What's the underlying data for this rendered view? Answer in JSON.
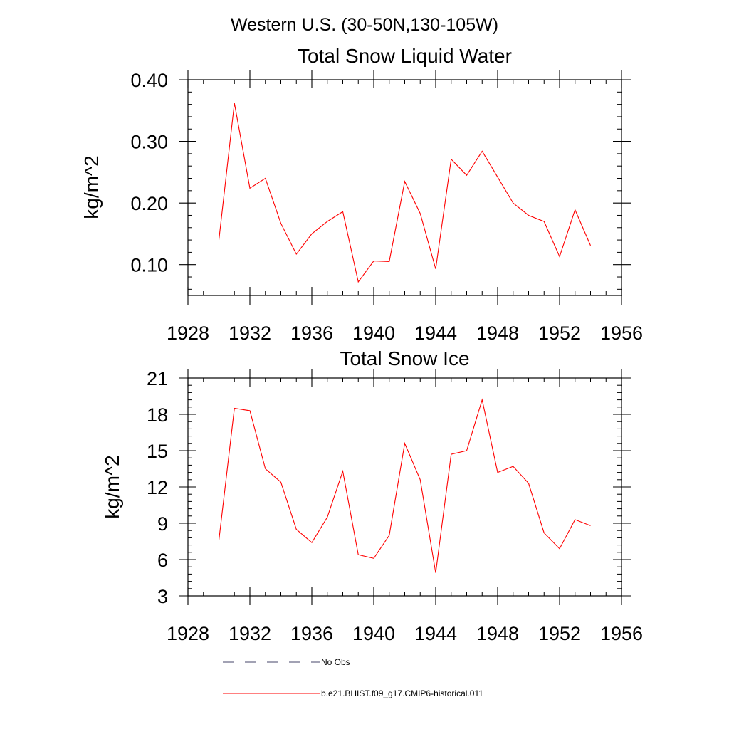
{
  "page_title": "Western U.S. (30-50N,130-105W)",
  "chart_data": [
    {
      "type": "line",
      "title": "Total Snow Liquid Water",
      "ylabel": "kg/m^2",
      "xlabel": "",
      "xlim": [
        1928,
        1956
      ],
      "ylim": [
        0.05,
        0.4
      ],
      "xticks": [
        1928,
        1932,
        1936,
        1940,
        1944,
        1948,
        1952,
        1956
      ],
      "xtick_labels": [
        "1928",
        "1932",
        "1936",
        "1940",
        "1944",
        "1948",
        "1952",
        "1956"
      ],
      "yticks": [
        0.1,
        0.2,
        0.3,
        0.4
      ],
      "ytick_labels": [
        "0.10",
        "0.20",
        "0.30",
        "0.40"
      ],
      "x": [
        1930,
        1931,
        1932,
        1933,
        1934,
        1935,
        1936,
        1937,
        1938,
        1939,
        1940,
        1941,
        1942,
        1943,
        1944,
        1945,
        1946,
        1947,
        1948,
        1949,
        1950,
        1951,
        1952,
        1953,
        1954
      ],
      "series": [
        {
          "name": "b.e21.BHIST.f09_g17.CMIP6-historical.011",
          "color": "#ff0000",
          "values": [
            0.14,
            0.362,
            0.224,
            0.24,
            0.167,
            0.117,
            0.15,
            0.17,
            0.186,
            0.072,
            0.106,
            0.105,
            0.235,
            0.183,
            0.093,
            0.271,
            0.245,
            0.284,
            0.242,
            0.2,
            0.18,
            0.17,
            0.113,
            0.189,
            0.131
          ]
        }
      ]
    },
    {
      "type": "line",
      "title": "Total Snow Ice",
      "ylabel": "kg/m^2",
      "xlabel": "",
      "xlim": [
        1928,
        1956
      ],
      "ylim": [
        3,
        21
      ],
      "xticks": [
        1928,
        1932,
        1936,
        1940,
        1944,
        1948,
        1952,
        1956
      ],
      "xtick_labels": [
        "1928",
        "1932",
        "1936",
        "1940",
        "1944",
        "1948",
        "1952",
        "1956"
      ],
      "yticks": [
        3,
        6,
        9,
        12,
        15,
        18,
        21
      ],
      "ytick_labels": [
        "3",
        "6",
        "9",
        "12",
        "15",
        "18",
        "21"
      ],
      "x": [
        1930,
        1931,
        1932,
        1933,
        1934,
        1935,
        1936,
        1937,
        1938,
        1939,
        1940,
        1941,
        1942,
        1943,
        1944,
        1945,
        1946,
        1947,
        1948,
        1949,
        1950,
        1951,
        1952,
        1953,
        1954
      ],
      "series": [
        {
          "name": "b.e21.BHIST.f09_g17.CMIP6-historical.011",
          "color": "#ff0000",
          "values": [
            7.6,
            18.5,
            18.3,
            13.5,
            12.4,
            8.5,
            7.4,
            9.5,
            13.3,
            6.4,
            6.1,
            8.0,
            15.6,
            12.6,
            4.9,
            14.7,
            15.0,
            19.2,
            13.2,
            13.7,
            12.3,
            8.2,
            6.9,
            9.3,
            8.8
          ]
        }
      ]
    }
  ],
  "legend": [
    {
      "label": "No Obs",
      "color": "#44446a",
      "dash": "dashed"
    },
    {
      "label": "b.e21.BHIST.f09_g17.CMIP6-historical.011",
      "color": "#ff0000",
      "dash": "solid"
    }
  ]
}
